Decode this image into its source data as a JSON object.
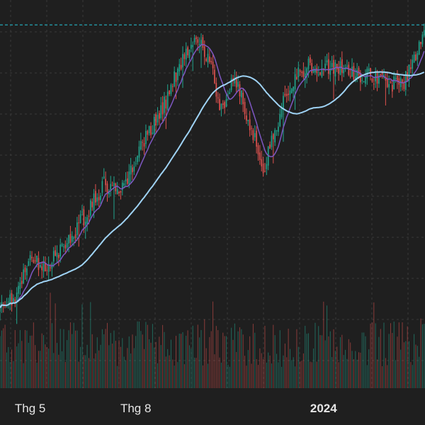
{
  "chart_data": {
    "type": "candlestick",
    "grid": true,
    "colors": {
      "background": "#1f1f1f",
      "grid": "#3a3a3a",
      "up": "#22a58e",
      "down": "#e0524f",
      "ma_fast": "#7e57c2",
      "ma_slow": "#9fd3f5",
      "last_price_line": "#26c6da",
      "label": "#e6e6e6"
    },
    "x_axis": {
      "ticks": [
        {
          "label": "Thg 5",
          "index": 18,
          "bold": false
        },
        {
          "label": "Thg 8",
          "index": 81,
          "bold": false
        },
        {
          "label": "2024",
          "index": 193,
          "bold": true
        }
      ]
    },
    "candle_count": 254,
    "key_points": [
      {
        "i": 0,
        "price": 10.2
      },
      {
        "i": 10,
        "price": 10.9
      },
      {
        "i": 18,
        "price": 12.3
      },
      {
        "i": 28,
        "price": 11.9
      },
      {
        "i": 45,
        "price": 13.4
      },
      {
        "i": 62,
        "price": 15.3
      },
      {
        "i": 72,
        "price": 15.0
      },
      {
        "i": 88,
        "price": 17.3
      },
      {
        "i": 100,
        "price": 18.8
      },
      {
        "i": 110,
        "price": 20.6
      },
      {
        "i": 118,
        "price": 21.3
      },
      {
        "i": 125,
        "price": 20.2
      },
      {
        "i": 132,
        "price": 18.2
      },
      {
        "i": 140,
        "price": 19.6
      },
      {
        "i": 150,
        "price": 17.5
      },
      {
        "i": 157,
        "price": 15.8
      },
      {
        "i": 165,
        "price": 17.6
      },
      {
        "i": 172,
        "price": 19.2
      },
      {
        "i": 182,
        "price": 20.0
      },
      {
        "i": 195,
        "price": 20.0
      },
      {
        "i": 210,
        "price": 19.8
      },
      {
        "i": 225,
        "price": 19.6
      },
      {
        "i": 240,
        "price": 19.2
      },
      {
        "i": 248,
        "price": 20.5
      },
      {
        "i": 253,
        "price": 21.7
      }
    ],
    "y_range": [
      9.3,
      22.7
    ],
    "last_price": 21.7,
    "moving_averages": [
      {
        "period": 10,
        "color_key": "ma_fast"
      },
      {
        "period": 50,
        "color_key": "ma_slow"
      }
    ]
  }
}
